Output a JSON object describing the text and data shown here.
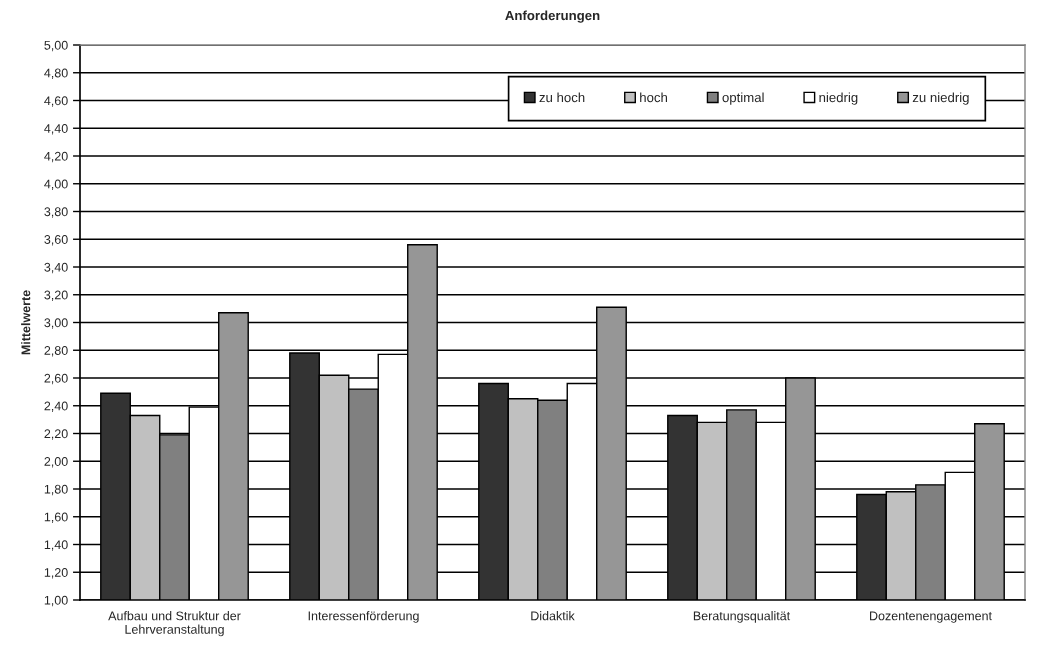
{
  "chart_data": {
    "type": "bar",
    "title": "Anforderungen",
    "ylabel": "Mittelwerte",
    "categories": [
      "Aufbau und Struktur der\nLehrveranstaltung",
      "Interessenförderung",
      "Didaktik",
      "Beratungsqualität",
      "Dozentenengagement"
    ],
    "series": [
      {
        "name": "zu hoch",
        "color": "#333333",
        "values": [
          2.49,
          2.78,
          2.56,
          2.33,
          1.76
        ]
      },
      {
        "name": "hoch",
        "color": "#c0c0c0",
        "values": [
          2.33,
          2.62,
          2.45,
          2.28,
          1.78
        ]
      },
      {
        "name": "optimal",
        "color": "#808080",
        "values": [
          2.19,
          2.52,
          2.44,
          2.37,
          1.83
        ]
      },
      {
        "name": "niedrig",
        "color": "#ffffff",
        "values": [
          2.39,
          2.77,
          2.56,
          2.28,
          1.92
        ]
      },
      {
        "name": "zu niedrig",
        "color": "#969696",
        "values": [
          3.07,
          3.56,
          3.11,
          2.6,
          2.27
        ]
      }
    ],
    "ylim": [
      1,
      5
    ],
    "yticks": [
      {
        "value": 1.0,
        "label": "1,00"
      },
      {
        "value": 1.2,
        "label": "1,20"
      },
      {
        "value": 1.4,
        "label": "1,40"
      },
      {
        "value": 1.6,
        "label": "1,60"
      },
      {
        "value": 1.8,
        "label": "1,80"
      },
      {
        "value": 2.0,
        "label": "2,00"
      },
      {
        "value": 2.2,
        "label": "2,20"
      },
      {
        "value": 2.4,
        "label": "2,40"
      },
      {
        "value": 2.6,
        "label": "2,60"
      },
      {
        "value": 2.8,
        "label": "2,80"
      },
      {
        "value": 3.0,
        "label": "3,00"
      },
      {
        "value": 3.2,
        "label": "3,20"
      },
      {
        "value": 3.4,
        "label": "3,40"
      },
      {
        "value": 3.6,
        "label": "3,60"
      },
      {
        "value": 3.8,
        "label": "3,80"
      },
      {
        "value": 4.0,
        "label": "4,00"
      },
      {
        "value": 4.2,
        "label": "4,20"
      },
      {
        "value": 4.4,
        "label": "4,40"
      },
      {
        "value": 4.6,
        "label": "4,60"
      },
      {
        "value": 4.8,
        "label": "4,80"
      },
      {
        "value": 5.0,
        "label": "5,00"
      }
    ],
    "grid": "y",
    "legend": "top right"
  }
}
